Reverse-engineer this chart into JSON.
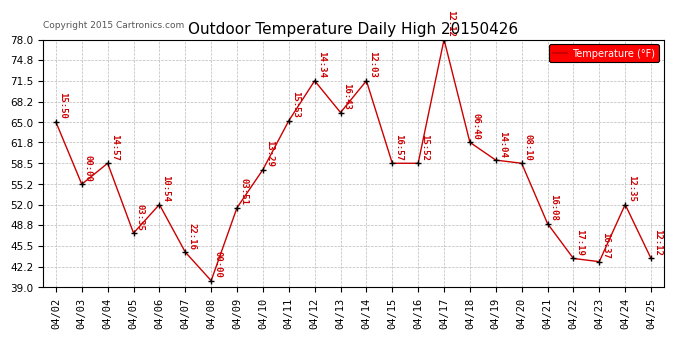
{
  "title": "Outdoor Temperature Daily High 20150426",
  "copyright_text": "Copyright 2015 Cartronics.com",
  "legend_label": "Temperature (°F)",
  "dates": [
    "04/02",
    "04/03",
    "04/04",
    "04/05",
    "04/06",
    "04/07",
    "04/08",
    "04/09",
    "04/10",
    "04/11",
    "04/12",
    "04/13",
    "04/14",
    "04/15",
    "04/16",
    "04/17",
    "04/18",
    "04/19",
    "04/20",
    "04/21",
    "04/22",
    "04/23",
    "04/24",
    "04/25"
  ],
  "temps": [
    65.0,
    55.2,
    58.5,
    47.5,
    52.0,
    44.5,
    40.0,
    51.5,
    57.5,
    65.2,
    71.5,
    66.5,
    71.5,
    58.5,
    58.5,
    78.0,
    61.8,
    59.0,
    58.5,
    49.0,
    43.5,
    43.0,
    52.0,
    43.5
  ],
  "time_labels": [
    "15:50",
    "00:00",
    "14:57",
    "03:35",
    "10:54",
    "22:16",
    "00:00",
    "03:51",
    "13:29",
    "15:53",
    "14:34",
    "16:43",
    "12:03",
    "16:57",
    "15:52",
    "12:12",
    "06:40",
    "14:04",
    "08:10",
    "16:08",
    "17:19",
    "16:37",
    "12:35",
    "12:12"
  ],
  "ylim": [
    39.0,
    78.0
  ],
  "yticks": [
    39.0,
    42.2,
    45.5,
    48.8,
    52.0,
    55.2,
    58.5,
    61.8,
    65.0,
    68.2,
    71.5,
    74.8,
    78.0
  ],
  "line_color": "#cc0000",
  "marker_color": "#000000",
  "background_color": "#ffffff",
  "grid_color": "#bbbbbb",
  "title_fontsize": 11,
  "label_fontsize": 7.5,
  "annotation_fontsize": 6.5,
  "copyright_fontsize": 6.5
}
